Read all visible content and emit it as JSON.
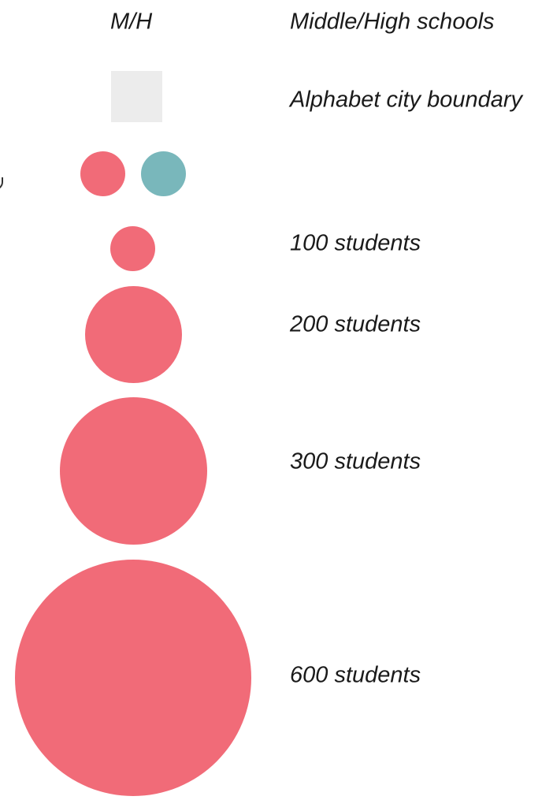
{
  "legend": {
    "column_header": "M/H",
    "type_label": "Middle/High schools",
    "boundary_label": "Alphabet city boundary",
    "size_labels": [
      "100 students",
      "200 students",
      "300 students",
      "600 students"
    ],
    "colors": {
      "school_primary": "#f16b78",
      "school_secondary": "#79b7bb",
      "boundary_fill": "#ececec"
    }
  }
}
